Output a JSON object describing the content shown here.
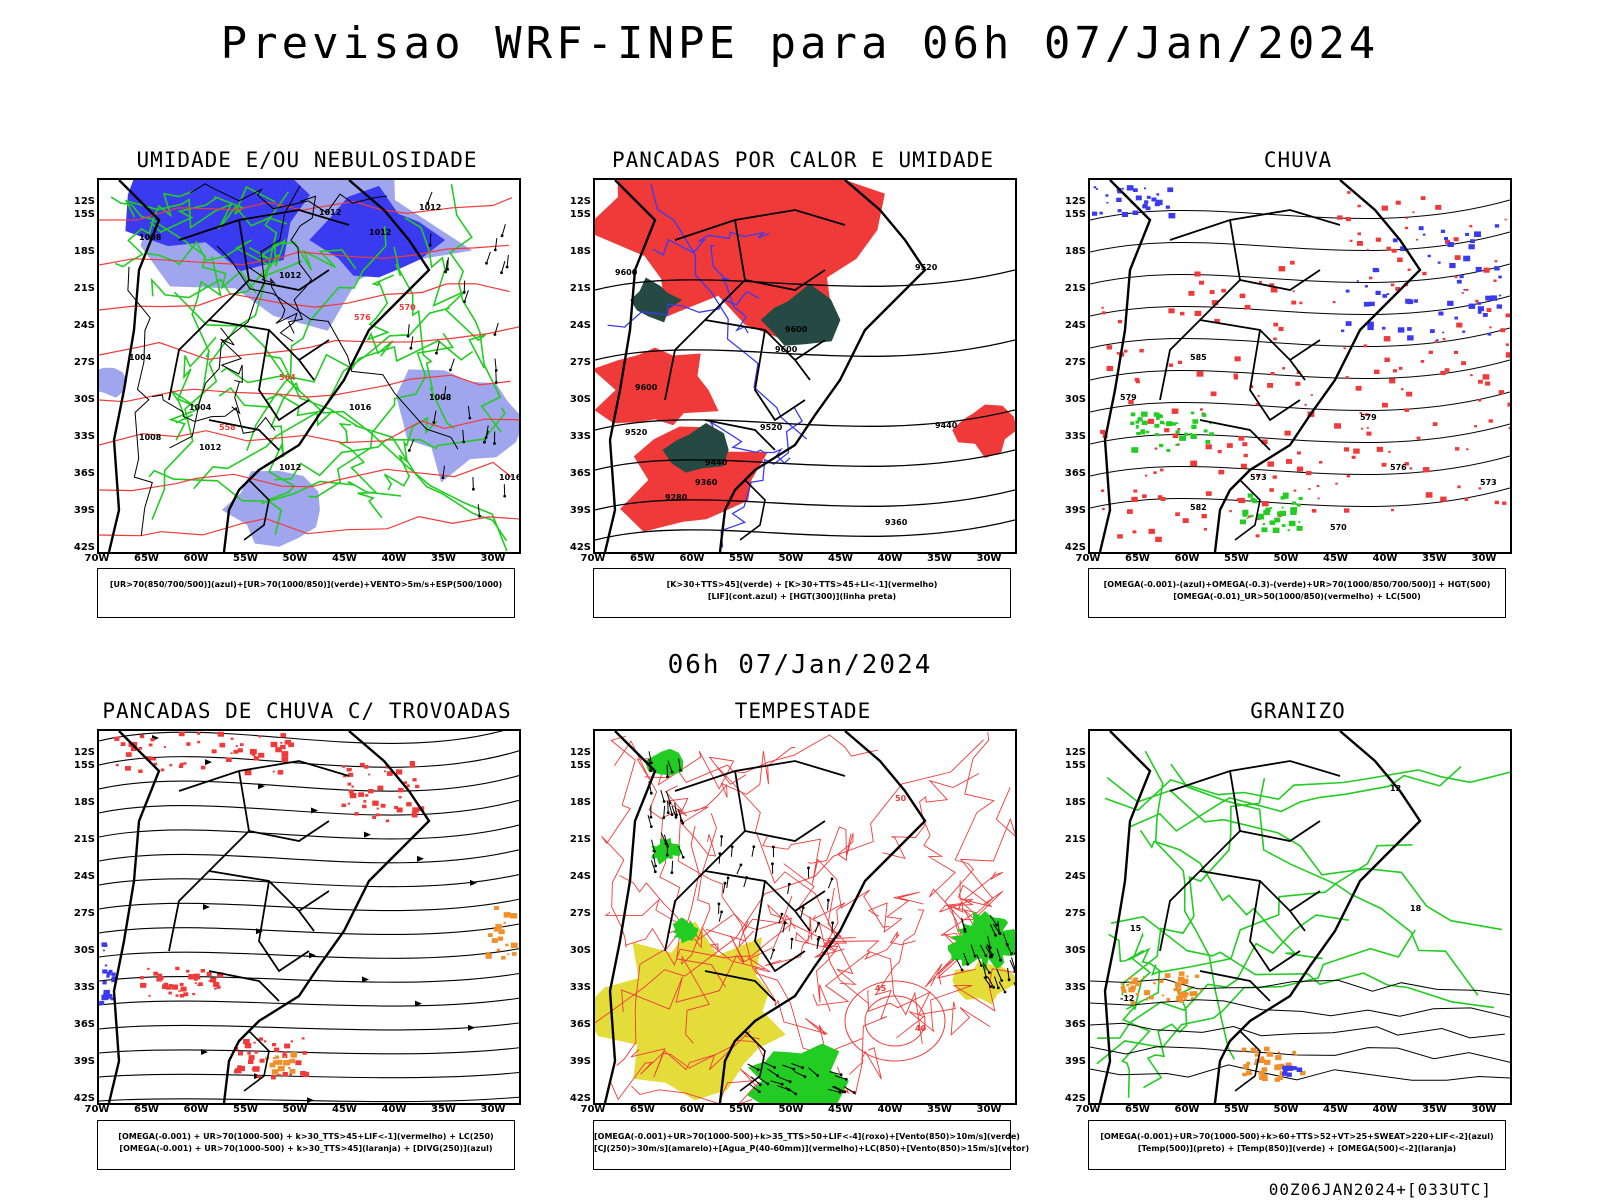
{
  "title": "Previsao WRF-INPE  para 06h 07/Jan/2024",
  "mid_title": "06h 07/Jan/2024",
  "footer": "00Z06JAN2024+[033UTC]",
  "axes": {
    "lat": [
      "12S",
      "15S",
      "18S",
      "21S",
      "24S",
      "27S",
      "30S",
      "33S",
      "36S",
      "39S",
      "42S"
    ],
    "lon": [
      "70W",
      "65W",
      "60W",
      "55W",
      "50W",
      "45W",
      "40W",
      "35W",
      "30W"
    ]
  },
  "colors": {
    "blue": "#3a3af0",
    "light_blue": "#9fa6ee",
    "green": "#22cc22",
    "red": "#f03a3a",
    "dark_teal": "#254a44",
    "yellow": "#e4dc38",
    "orange": "#f0902a"
  },
  "panels": [
    {
      "title": "UMIDADE E/OU NEBULOSIDADE",
      "legend": [
        "[UR>70(850/700/500)](azul)+[UR>70(1000/850)](verde)+VENTO>5m/s+ESP(500/1000)"
      ],
      "labels": [
        "1012",
        "1012",
        "1012",
        "1008",
        "1012",
        "1008",
        "1016",
        "1012",
        "1004",
        "1004",
        "1008",
        "1012",
        "1016",
        "576",
        "570",
        "564",
        "558"
      ]
    },
    {
      "title": "PANCADAS POR CALOR E UMIDADE",
      "legend": [
        "[K>30+TTS>45](verde) + [K>30+TTS>45+LI<-1](vermelho)",
        "[LIF](cont.azul) + [HGT(300)](linha preta)"
      ],
      "labels": [
        "9600",
        "9600",
        "9600",
        "9600",
        "9520",
        "9520",
        "9520",
        "9440",
        "9440",
        "9360",
        "9360",
        "9280"
      ]
    },
    {
      "title": "CHUVA",
      "legend": [
        "[OMEGA(-0.001)-(azul)+OMEGA(-0.3)-(verde)+UR>70(1000/850/700/500)] + HGT(500)",
        "[OMEGA(-0.01)_UR>50(1000/850)(vermelho) + LC(500)"
      ],
      "labels": [
        "585",
        "579",
        "579",
        "576",
        "573",
        "573",
        "570",
        "582"
      ]
    },
    {
      "title": "PANCADAS DE CHUVA C/ TROVOADAS",
      "legend": [
        "[OMEGA(-0.001) + UR>70(1000-500) + k>30_TTS>45+LIF<-1](vermelho) + LC(250)",
        "[OMEGA(-0.001) + UR>70(1000-500) + k>30_TTS>45](laranja) + [DIVG(250)](azul)"
      ],
      "labels": []
    },
    {
      "title": "TEMPESTADE",
      "legend": [
        "[OMEGA(-0.001)+UR>70(1000-500)+k>35_TTS>50+LIF<-4](roxo)+[Vento(850)>10m/s](verde)",
        "[CJ(250)>30m/s](amarelo)+[Agua_P(40-60mm)](vermelho)+LC(850)+[Vento(850)>15m/s](vetor)"
      ],
      "labels": [
        "50",
        "45",
        "40"
      ]
    },
    {
      "title": "GRANIZO",
      "legend": [
        "[OMEGA(-0.001)+UR>70(1000-500)+k>60+TTS>52+VT>25+SWEAT>220+LIF<-2](azul)",
        "[Temp(500)](preto) + [Temp(850)](verde) + [OMEGA(500)<-2](laranja)"
      ],
      "labels": [
        "12",
        "18",
        "15",
        "-12"
      ]
    }
  ]
}
